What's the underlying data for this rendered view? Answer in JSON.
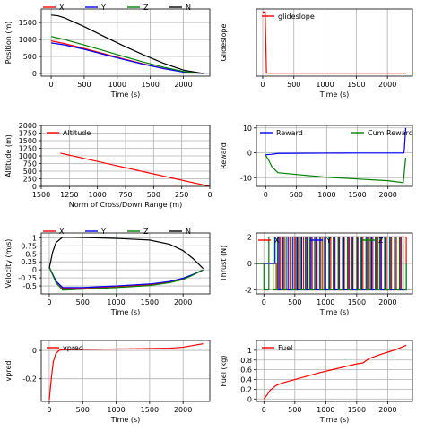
{
  "chart_data": [
    {
      "type": "line",
      "title": "",
      "xlabel": "Time (s)",
      "ylabel": "Position (m)",
      "xlim": [
        -150,
        2400
      ],
      "ylim": [
        -80,
        1900
      ],
      "xticks": [
        0,
        500,
        1000,
        1500,
        2000
      ],
      "yticks": [
        0,
        500,
        1000,
        1500
      ],
      "grid": true,
      "legend": "top (above plot)",
      "series": [
        {
          "name": "X",
          "color": "#ff0000",
          "x": [
            0,
            200,
            500,
            800,
            1100,
            1400,
            1700,
            2000,
            2300
          ],
          "y": [
            960,
            880,
            735,
            580,
            425,
            280,
            150,
            45,
            0
          ]
        },
        {
          "name": "Y",
          "color": "#0000ff",
          "x": [
            0,
            200,
            500,
            800,
            1100,
            1400,
            1700,
            2000,
            2300
          ],
          "y": [
            900,
            840,
            710,
            560,
            410,
            270,
            145,
            42,
            0
          ]
        },
        {
          "name": "Z",
          "color": "#008000",
          "x": [
            0,
            200,
            500,
            800,
            1100,
            1400,
            1700,
            2000,
            2300
          ],
          "y": [
            1090,
            1000,
            840,
            670,
            500,
            335,
            185,
            60,
            0
          ]
        },
        {
          "name": "N",
          "color": "#000000",
          "x": [
            0,
            100,
            200,
            500,
            800,
            1100,
            1400,
            1700,
            2000,
            2300
          ],
          "y": [
            1720,
            1700,
            1640,
            1380,
            1090,
            810,
            545,
            300,
            100,
            0
          ]
        }
      ]
    },
    {
      "type": "line",
      "title": "",
      "xlabel": "Time (s)",
      "ylabel": "Glideslope",
      "xlim": [
        -100,
        2400
      ],
      "ylim": [
        -5,
        105
      ],
      "xticks": [
        0,
        500,
        1000,
        1500,
        2000
      ],
      "yticks": [],
      "grid": true,
      "legend": "top-left",
      "series": [
        {
          "name": "glideslope",
          "color": "#ff0000",
          "x": [
            0,
            40,
            60,
            2300
          ],
          "y": [
            100,
            100,
            0,
            0
          ]
        }
      ]
    },
    {
      "type": "line",
      "title": "",
      "xlabel": "Norm of Cross/Down Range  (m)",
      "ylabel": "Altitude (m)",
      "xlim": [
        1500,
        0
      ],
      "ylim": [
        0,
        2000
      ],
      "xticks": [
        1500,
        1250,
        1000,
        750,
        500,
        250,
        0
      ],
      "yticks": [
        0,
        250,
        500,
        750,
        1000,
        1250,
        1500,
        1750,
        2000
      ],
      "grid": true,
      "legend": "top-left",
      "series": [
        {
          "name": "Altitude",
          "color": "#ff0000",
          "x": [
            1330,
            0
          ],
          "y": [
            1090,
            0
          ]
        }
      ]
    },
    {
      "type": "line",
      "title": "",
      "xlabel": "",
      "ylabel": "Reward",
      "xlim": [
        -150,
        2400
      ],
      "ylim": [
        -13.5,
        11
      ],
      "xticks": [
        0,
        500,
        1000,
        1500,
        2000
      ],
      "yticks": [
        -10,
        0,
        10
      ],
      "grid": true,
      "legend": "top",
      "series": [
        {
          "name": "Reward",
          "color": "#0000ff",
          "x": [
            0,
            100,
            200,
            500,
            1000,
            1500,
            2000,
            2260,
            2270,
            2290
          ],
          "y": [
            -0.8,
            -0.6,
            -0.25,
            -0.2,
            -0.15,
            -0.1,
            -0.1,
            -0.1,
            2,
            10
          ]
        },
        {
          "name": "Cum Reward",
          "color": "#008000",
          "x": [
            0,
            50,
            100,
            200,
            500,
            1000,
            1500,
            2000,
            2250,
            2270,
            2290
          ],
          "y": [
            -1,
            -3,
            -5.5,
            -8,
            -8.7,
            -9.8,
            -10.5,
            -11.2,
            -12,
            -7,
            -2
          ]
        }
      ]
    },
    {
      "type": "line",
      "title": "",
      "xlabel": "Time (s)",
      "ylabel": "Velocity (m/s)",
      "xlim": [
        -120,
        2400
      ],
      "ylim": [
        -0.75,
        1.15
      ],
      "xticks": [
        0,
        500,
        1000,
        1500,
        2000
      ],
      "yticks": [
        -0.5,
        -0.25,
        0.0,
        0.25,
        0.5,
        0.75,
        1.0
      ],
      "grid": true,
      "legend": "top (above plot)",
      "series": [
        {
          "name": "X",
          "color": "#ff0000",
          "x": [
            0,
            100,
            200,
            500,
            1000,
            1500,
            1800,
            2000,
            2150,
            2300
          ],
          "y": [
            0.08,
            -0.35,
            -0.58,
            -0.58,
            -0.52,
            -0.46,
            -0.38,
            -0.28,
            -0.15,
            0
          ]
        },
        {
          "name": "Y",
          "color": "#0000ff",
          "x": [
            0,
            100,
            200,
            500,
            1000,
            1500,
            1800,
            2000,
            2150,
            2300
          ],
          "y": [
            0.08,
            -0.35,
            -0.55,
            -0.55,
            -0.5,
            -0.44,
            -0.36,
            -0.26,
            -0.14,
            0
          ]
        },
        {
          "name": "Z",
          "color": "#008000",
          "x": [
            0,
            100,
            200,
            500,
            1000,
            1500,
            1800,
            2000,
            2150,
            2300
          ],
          "y": [
            0.08,
            -0.4,
            -0.63,
            -0.6,
            -0.55,
            -0.49,
            -0.4,
            -0.3,
            -0.16,
            0
          ]
        },
        {
          "name": "N",
          "color": "#000000",
          "x": [
            0,
            50,
            100,
            200,
            500,
            1000,
            1500,
            1800,
            2000,
            2150,
            2300
          ],
          "y": [
            0.05,
            0.55,
            0.85,
            1.02,
            1.01,
            0.98,
            0.93,
            0.8,
            0.6,
            0.35,
            0.04
          ]
        }
      ]
    },
    {
      "type": "line",
      "title": "",
      "xlabel": "Time (s)",
      "ylabel": "Thrust (N)",
      "xlim": [
        -120,
        2400
      ],
      "ylim": [
        -2.3,
        2.3
      ],
      "xticks": [
        0,
        500,
        1000,
        1500,
        2000
      ],
      "yticks": [
        -2,
        0,
        2
      ],
      "grid": true,
      "legend": "top",
      "series": [
        {
          "name": "X",
          "color": "#ff0000",
          "switch_times": [
            200,
            260,
            330,
            420,
            500,
            560,
            640,
            700,
            780,
            860,
            940,
            1000,
            1080,
            1150,
            1220,
            1300,
            1380,
            1440,
            1520,
            1600,
            1680,
            1760,
            1840,
            1900,
            1980,
            2060,
            2140,
            2220
          ],
          "low": -2,
          "high": 2
        },
        {
          "name": "Y",
          "color": "#0000ff",
          "switch_times": [
            180,
            240,
            310,
            390,
            470,
            540,
            610,
            690,
            760,
            840,
            910,
            990,
            1060,
            1140,
            1210,
            1290,
            1360,
            1430,
            1510,
            1580,
            1660,
            1740,
            1810,
            1890,
            1960,
            2040,
            2120,
            2200
          ],
          "low": -2,
          "high": 2
        },
        {
          "name": "Z",
          "color": "#008000",
          "switch_times": [
            0,
            80,
            150,
            220,
            290,
            360,
            440,
            520,
            590,
            670,
            740,
            820,
            900,
            970,
            1050,
            1120,
            1200,
            1270,
            1350,
            1420,
            1500,
            1570,
            1650,
            1720,
            1800,
            1870,
            1950,
            2030,
            2110,
            2190,
            2250
          ],
          "low": -2,
          "high": 2
        }
      ]
    },
    {
      "type": "line",
      "title": "",
      "xlabel": "Time (s)",
      "ylabel": "vpred",
      "xlim": [
        -120,
        2400
      ],
      "ylim": [
        -0.36,
        0.07
      ],
      "xticks": [
        0,
        500,
        1000,
        1500,
        2000
      ],
      "yticks": [
        -0.2,
        0.0
      ],
      "grid": true,
      "legend": "top-left",
      "series": [
        {
          "name": "vpred",
          "color": "#ff0000",
          "x": [
            0,
            30,
            60,
            100,
            150,
            200,
            300,
            500,
            1000,
            1500,
            1800,
            2000,
            2150,
            2300
          ],
          "y": [
            -0.35,
            -0.2,
            -0.08,
            -0.02,
            0.0,
            0.005,
            0.005,
            0.007,
            0.01,
            0.013,
            0.016,
            0.022,
            0.035,
            0.047
          ]
        }
      ]
    },
    {
      "type": "line",
      "title": "",
      "xlabel": "Time (s)",
      "ylabel": "Fuel (kg)",
      "xlim": [
        -120,
        2400
      ],
      "ylim": [
        -0.05,
        1.2
      ],
      "xticks": [
        0,
        500,
        1000,
        1500,
        2000
      ],
      "yticks": [
        0.0,
        0.2,
        0.4,
        0.6,
        0.8,
        1.0
      ],
      "grid": true,
      "legend": "top-left",
      "series": [
        {
          "name": "Fuel",
          "color": "#ff0000",
          "x": [
            0,
            50,
            100,
            200,
            300,
            500,
            700,
            900,
            1100,
            1300,
            1500,
            1600,
            1700,
            1900,
            2100,
            2200,
            2300
          ],
          "y": [
            0.0,
            0.08,
            0.18,
            0.28,
            0.33,
            0.4,
            0.47,
            0.54,
            0.6,
            0.66,
            0.72,
            0.74,
            0.83,
            0.92,
            1.0,
            1.05,
            1.1
          ]
        }
      ]
    }
  ]
}
